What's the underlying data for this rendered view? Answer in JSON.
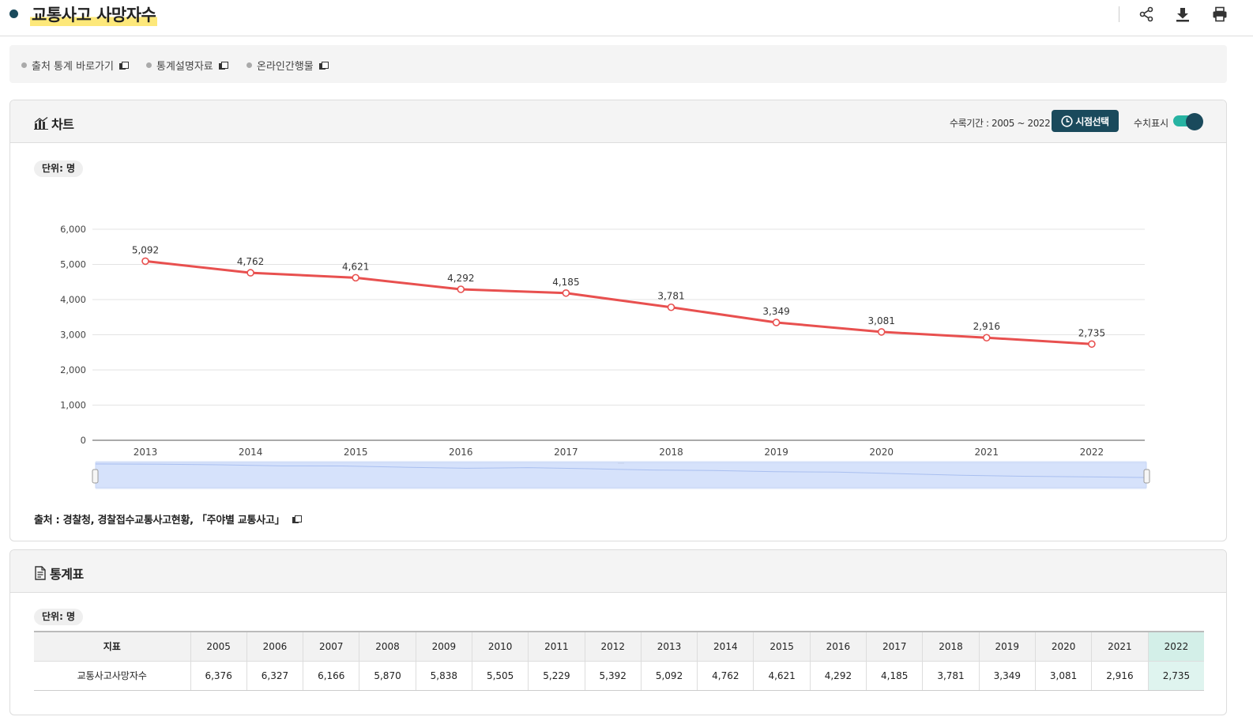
{
  "page": {
    "title": "교통사고 사망자수",
    "actions": [
      "share-icon",
      "download-icon",
      "print-icon"
    ]
  },
  "links": [
    {
      "label": "출처 통계 바로가기"
    },
    {
      "label": "통계설명자료"
    },
    {
      "label": "온라인간행물"
    }
  ],
  "chart_panel": {
    "title": "차트",
    "period_label": "수록기간 : 2005 ~ 2022",
    "time_button": "시점선택",
    "toggle_label": "수치표시",
    "toggle_on": true,
    "unit": "단위: 명",
    "source": "출처 :  경찰청, 경찰접수교통사고현황, 「주야별 교통사고」"
  },
  "chart_data": {
    "type": "line",
    "x": [
      "2013",
      "2014",
      "2015",
      "2016",
      "2017",
      "2018",
      "2019",
      "2020",
      "2021",
      "2022"
    ],
    "series": [
      {
        "values": [
          5092,
          4762,
          4621,
          4292,
          4185,
          3781,
          3349,
          3081,
          2916,
          2735
        ],
        "color": "#e8504f"
      }
    ],
    "ylim": [
      0,
      6000
    ],
    "yticks": [
      0,
      1000,
      2000,
      3000,
      4000,
      5000,
      6000
    ],
    "ytick_labels": [
      "0",
      "1,000",
      "2,000",
      "3,000",
      "4,000",
      "5,000",
      "6,000"
    ],
    "data_labels": [
      "5,092",
      "4,762",
      "4,621",
      "4,292",
      "4,185",
      "3,781",
      "3,349",
      "3,081",
      "2,916",
      "2,735"
    ],
    "grid": true,
    "navigator": true,
    "navigator_series": [
      6376,
      6327,
      6166,
      5870,
      5838,
      5505,
      5229,
      5392,
      5092,
      4762,
      4621,
      4292,
      4185,
      3781,
      3349,
      3081,
      2916,
      2735
    ]
  },
  "table_panel": {
    "title": "통계표",
    "unit": "단위: 명",
    "header_label": "지표",
    "years": [
      "2005",
      "2006",
      "2007",
      "2008",
      "2009",
      "2010",
      "2011",
      "2012",
      "2013",
      "2014",
      "2015",
      "2016",
      "2017",
      "2018",
      "2019",
      "2020",
      "2021",
      "2022"
    ],
    "rows": [
      {
        "label": "교통사고사망자수",
        "values": [
          "6,376",
          "6,327",
          "6,166",
          "5,870",
          "5,838",
          "5,505",
          "5,229",
          "5,392",
          "5,092",
          "4,762",
          "4,621",
          "4,292",
          "4,185",
          "3,781",
          "3,349",
          "3,081",
          "2,916",
          "2,735"
        ]
      }
    ],
    "highlight_year": "2022"
  }
}
